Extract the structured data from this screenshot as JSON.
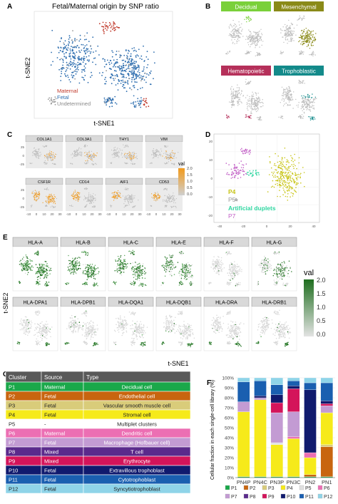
{
  "colors": {
    "maternal": "#c0392b",
    "fetal": "#2f6fb0",
    "undetermined": "#9a9a9a",
    "decidual": "#7ad03a",
    "mesenchymal": "#8a8a18",
    "hematopoietic": "#b5305a",
    "trophoblastic": "#138a8a",
    "grey_cells": "#bdbdbd",
    "heat_low": "#bdbdbd",
    "heat_high": "#f29a1b",
    "green_low": "#d9d9d9",
    "green_high": "#1f6e1f",
    "p4": "#c8c416",
    "p5": "#9a9a9a",
    "p6": "#2fd6a0",
    "p7": "#c25fc6"
  },
  "panelA": {
    "letter": "A",
    "title": "Fetal/Maternal origin by SNP ratio",
    "ylabel": "t-SNE2",
    "xlabel": "t-SNE1",
    "legend": [
      "Maternal",
      "Fetal",
      "Undetermined"
    ]
  },
  "panelB": {
    "letter": "B",
    "labels": [
      "Decidual",
      "Mesenchymal",
      "Hematopoietic",
      "Trophoblastic"
    ]
  },
  "panelC": {
    "letter": "C",
    "genes": [
      "COL1A1",
      "COL3A1",
      "THY1",
      "VIM",
      "CSF1R",
      "CD14",
      "AIF1",
      "CD53"
    ],
    "yticks": [
      "-25",
      "0",
      "25"
    ],
    "xticks": [
      "-10",
      "0",
      "10",
      "20",
      "30"
    ],
    "legend_title": "val",
    "legend_ticks": [
      "2.0",
      "1.5",
      "1.0",
      "0.5",
      "0.0"
    ]
  },
  "panelD": {
    "letter": "D",
    "legend": [
      "P4",
      "P5",
      "Artificial duplets",
      "P7"
    ],
    "yticks": [
      "-20",
      "-10",
      "0",
      "10",
      "20"
    ],
    "xticks": [
      "-40",
      "-20",
      "0",
      "20",
      "40"
    ]
  },
  "panelE": {
    "letter": "E",
    "genes_row1": [
      "HLA-A",
      "HLA-B",
      "HLA-C",
      "HLA-E",
      "HLA-F",
      "HLA-G"
    ],
    "genes_row2": [
      "HLA-DPA1",
      "HLA-DPB1",
      "HLA-DQA1",
      "HLA-DQB1",
      "HLA-DRA",
      "HLA-DRB1"
    ],
    "ylabel": "t-SNE2",
    "xlabel": "t-SNE1",
    "legend_title": "val",
    "legend_ticks": [
      "2.0",
      "1.5",
      "1.0",
      "0.5",
      "0.0"
    ]
  },
  "panelF": {
    "letter": "F",
    "ylabel": "Cellular fraction in each single-cell library (%)",
    "yticks": [
      "100%",
      "90%",
      "80%",
      "70%",
      "60%",
      "50%",
      "40%",
      "30%",
      "20%",
      "10%",
      "0%"
    ],
    "legend": [
      "P1",
      "P2",
      "P3",
      "P4",
      "P5",
      "P6",
      "P7",
      "P8",
      "P9",
      "P10",
      "P11",
      "P12"
    ]
  },
  "panelG": {
    "letter": "G",
    "headers": [
      "Cluster",
      "Source",
      "Type"
    ],
    "rows": [
      {
        "cluster": "P1",
        "source": "Maternal",
        "type": "Decidual cell",
        "color": "#1aa84a",
        "text": "#ffffff"
      },
      {
        "cluster": "P2",
        "source": "Fetal",
        "type": "Endothelial cell",
        "color": "#c8650f",
        "text": "#ffffff"
      },
      {
        "cluster": "P3",
        "source": "Fetal",
        "type": "Vascular smooth muscle cell",
        "color": "#d9cc7a",
        "text": "#222222"
      },
      {
        "cluster": "P4",
        "source": "Fetal",
        "type": "Stromal cell",
        "color": "#f6ea1a",
        "text": "#222222"
      },
      {
        "cluster": "P5",
        "source": "-",
        "type": "Multiplet clusters",
        "color": "#ffffff",
        "text": "#222222"
      },
      {
        "cluster": "P6",
        "source": "Maternal",
        "type": "Dendritic cell",
        "color": "#ec6fb3",
        "text": "#ffffff"
      },
      {
        "cluster": "P7",
        "source": "Fetal",
        "type": "Macrophage (Hofbauer cell)",
        "color": "#c39bd3",
        "text": "#ffffff"
      },
      {
        "cluster": "P8",
        "source": "Mixed",
        "type": "T cell",
        "color": "#5b2a8c",
        "text": "#ffffff"
      },
      {
        "cluster": "P9",
        "source": "Mixed",
        "type": "Erythrocyte",
        "color": "#d4145a",
        "text": "#ffffff"
      },
      {
        "cluster": "P10",
        "source": "Fetal",
        "type": "Extravillous trophoblast",
        "color": "#101a6e",
        "text": "#ffffff"
      },
      {
        "cluster": "P11",
        "source": "Fetal",
        "type": "Cytotrophoblast",
        "color": "#1a5fb0",
        "text": "#ffffff"
      },
      {
        "cluster": "P12",
        "source": "Fetal",
        "type": "Syncytiotrophoblast",
        "color": "#8fd4e8",
        "text": "#222222"
      }
    ]
  },
  "chart_data": {
    "type": "bar",
    "stacked": true,
    "categories": [
      "PN4P",
      "PN4C",
      "PN3P",
      "PN3C",
      "PN2",
      "PN1"
    ],
    "ylim": [
      0,
      100
    ],
    "series": [
      {
        "name": "P1",
        "color": "#1aa84a",
        "values": [
          1,
          1,
          1,
          1,
          1,
          1
        ]
      },
      {
        "name": "P2",
        "color": "#c8650f",
        "values": [
          0,
          0,
          0,
          0,
          2,
          30
        ]
      },
      {
        "name": "P3",
        "color": "#d9cc7a",
        "values": [
          0,
          0,
          0,
          0,
          0,
          2
        ]
      },
      {
        "name": "P4",
        "color": "#f6ea1a",
        "values": [
          65,
          77,
          32,
          38,
          17,
          32
        ]
      },
      {
        "name": "P5",
        "color": "#e0e0e0",
        "values": [
          0,
          0,
          2,
          0,
          0,
          0
        ]
      },
      {
        "name": "P6",
        "color": "#ec6fb3",
        "values": [
          0,
          0,
          0,
          2,
          5,
          0
        ]
      },
      {
        "name": "P7",
        "color": "#c39bd3",
        "values": [
          10,
          2,
          30,
          25,
          0,
          7
        ]
      },
      {
        "name": "P8",
        "color": "#5b2a8c",
        "values": [
          0,
          0,
          0,
          0,
          0,
          0
        ]
      },
      {
        "name": "P9",
        "color": "#d4145a",
        "values": [
          0,
          0,
          10,
          23,
          0,
          2
        ]
      },
      {
        "name": "P10",
        "color": "#101a6e",
        "values": [
          0,
          2,
          8,
          3,
          63,
          3
        ]
      },
      {
        "name": "P11",
        "color": "#1a5fb0",
        "values": [
          20,
          15,
          10,
          5,
          7,
          18
        ]
      },
      {
        "name": "P12",
        "color": "#8fd4e8",
        "values": [
          4,
          3,
          7,
          3,
          5,
          5
        ]
      }
    ]
  }
}
